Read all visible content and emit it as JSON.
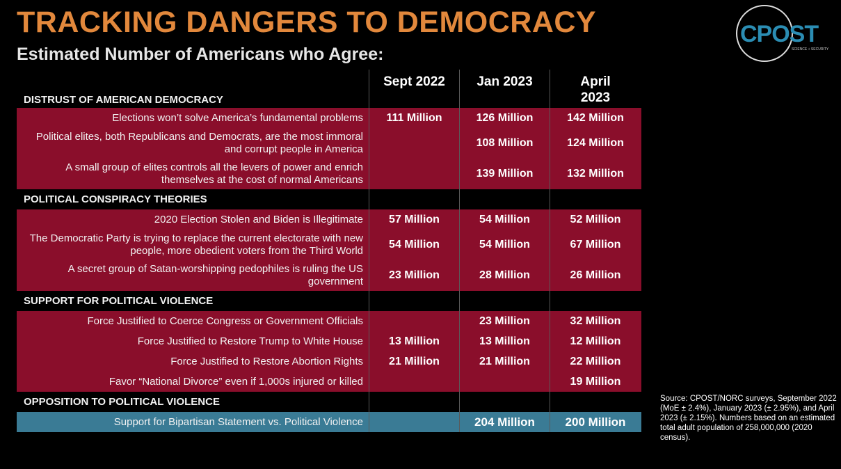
{
  "title": "TRACKING DANGERS TO DEMOCRACY",
  "subtitle": "Estimated Number of Americans who Agree:",
  "logo": {
    "text": "CPOST",
    "tagline": "SCIENCE + SECURITY"
  },
  "table": {
    "columns": [
      "Sept 2022",
      "Jan 2023",
      "April 2023"
    ],
    "sections": [
      {
        "title": "DISTRUST OF AMERICAN DEMOCRACY",
        "rows": [
          {
            "label": "Elections won’t solve America’s fundamental problems",
            "values": [
              "111 Million",
              "126 Million",
              "142 Million"
            ]
          },
          {
            "label": "Political elites, both Republicans and Democrats, are the most immoral and corrupt people in America",
            "values": [
              null,
              "108 Million",
              "124 Million"
            ]
          },
          {
            "label": "A small group of elites controls all the levers of power and  enrich themselves at the cost of normal Americans",
            "values": [
              null,
              "139 Million",
              "132 Million"
            ]
          }
        ]
      },
      {
        "title": "POLITICAL CONSPIRACY THEORIES",
        "rows": [
          {
            "label": "2020 Election Stolen and Biden is Illegitimate",
            "values": [
              "57 Million",
              "54 Million",
              "52 Million"
            ]
          },
          {
            "label": "The Democratic Party is trying to replace the current electorate with new people, more obedient voters from the Third World",
            "values": [
              "54 Million",
              "54 Million",
              "67 Million"
            ]
          },
          {
            "label": "A secret group of Satan-worshipping pedophiles is ruling the US government",
            "values": [
              "23 Million",
              "28 Million",
              "26 Million"
            ]
          }
        ]
      },
      {
        "title": "SUPPORT FOR POLITICAL VIOLENCE",
        "rows": [
          {
            "label": "Force Justified to Coerce Congress or Government Officials",
            "values": [
              null,
              "23 Million",
              "32 Million"
            ]
          },
          {
            "label": "Force Justified to Restore Trump to White House",
            "values": [
              "13 Million",
              "13 Million",
              "12 Million"
            ]
          },
          {
            "label": "Force Justified to Restore Abortion Rights",
            "values": [
              "21 Million",
              "21 Million",
              "22 Million"
            ]
          },
          {
            "label": "Favor “National Divorce” even if 1,000s injured or killed",
            "values": [
              null,
              null,
              "19 Million"
            ]
          }
        ]
      },
      {
        "title": "OPPOSITION TO POLITICAL VIOLENCE",
        "rows": [
          {
            "label": "Support for Bipartisan Statement vs. Political Violence",
            "values": [
              null,
              "204 Million",
              "200 Million"
            ]
          }
        ]
      }
    ]
  },
  "source": "Source: CPOST/NORC surveys, September 2022 (MoE ± 2.4%), January 2023 (± 2.95%), and April 2023 (± 2.15%). Numbers based on an estimated total adult population of 258,000,000 (2020 census)."
}
